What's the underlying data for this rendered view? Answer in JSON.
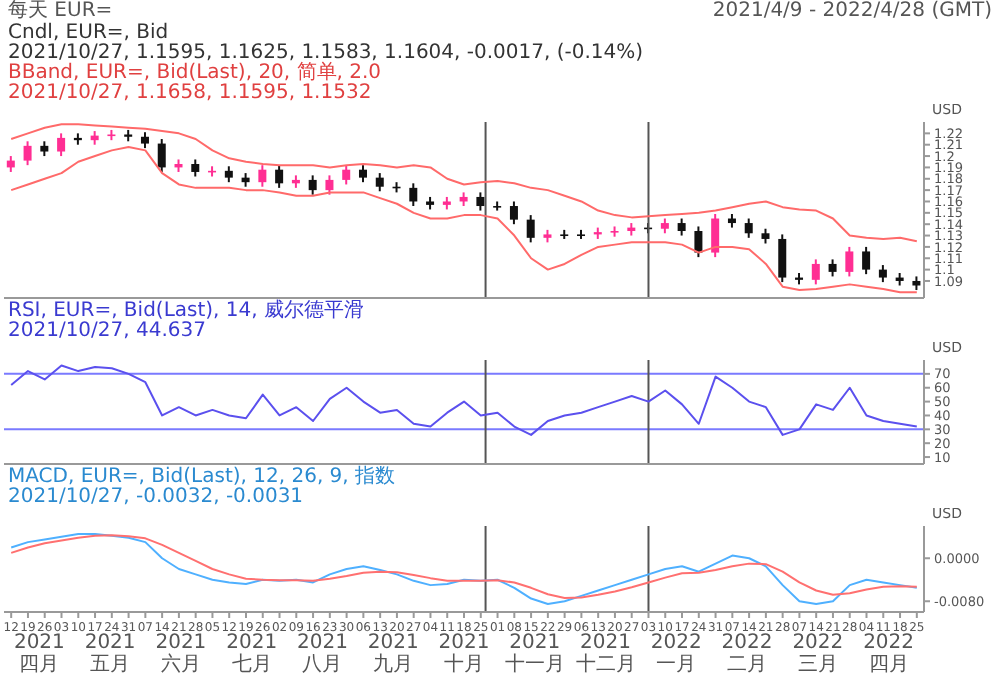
{
  "chart_data": [
    {
      "type": "candlestick",
      "title": "每天 EUR=",
      "subtitle": "2021/4/9 - 2022/4/28 (GMT)",
      "ylabel": "USD",
      "annotations": [
        "Cndl, EUR=, Bid",
        "2021/10/27, 1.1595, 1.1625, 1.1583, 1.1604, -0.0017, (-0.14%)",
        "BBand, EUR=, Bid(Last), 20, 简单, 2.0",
        "2021/10/27, 1.1658, 1.1595, 1.1532"
      ],
      "x": [
        "2021-04-12",
        "2021-04-19",
        "2021-04-26",
        "2021-05-03",
        "2021-05-10",
        "2021-05-17",
        "2021-05-24",
        "2021-05-31",
        "2021-06-07",
        "2021-06-14",
        "2021-06-21",
        "2021-06-28",
        "2021-07-05",
        "2021-07-12",
        "2021-07-19",
        "2021-07-26",
        "2021-08-02",
        "2021-08-09",
        "2021-08-16",
        "2021-08-23",
        "2021-08-30",
        "2021-09-06",
        "2021-09-13",
        "2021-09-20",
        "2021-09-27",
        "2021-10-04",
        "2021-10-11",
        "2021-10-18",
        "2021-10-25",
        "2021-11-01",
        "2021-11-08",
        "2021-11-15",
        "2021-11-22",
        "2021-11-29",
        "2021-12-06",
        "2021-12-13",
        "2021-12-20",
        "2021-12-27",
        "2022-01-03",
        "2022-01-10",
        "2022-01-17",
        "2022-01-24",
        "2022-01-31",
        "2022-02-07",
        "2022-02-14",
        "2022-02-21",
        "2022-02-28",
        "2022-03-07",
        "2022-03-14",
        "2022-03-21",
        "2022-03-28",
        "2022-04-04",
        "2022-04-11",
        "2022-04-18",
        "2022-04-25"
      ],
      "xlim": [
        "2021-04-09",
        "2022-04-28"
      ],
      "ylim": [
        1.075,
        1.23
      ],
      "yticks": [
        1.09,
        1.1,
        1.11,
        1.12,
        1.13,
        1.14,
        1.15,
        1.16,
        1.17,
        1.18,
        1.19,
        1.2,
        1.21,
        1.22
      ],
      "tick_labels": "y",
      "ref_lines": [
        {
          "axis": "x",
          "value": "2021-10-27",
          "label": null,
          "color": "#555555"
        },
        {
          "axis": "x",
          "value": "2022-01-03",
          "label": null,
          "color": "#555555"
        }
      ],
      "series": [
        {
          "ohlc": [
            [
              1.19,
              1.2,
              1.186,
              1.196
            ],
            [
              1.196,
              1.213,
              1.192,
              1.209
            ],
            [
              1.209,
              1.213,
              1.2,
              1.204
            ],
            [
              1.204,
              1.22,
              1.2,
              1.216
            ],
            [
              1.216,
              1.22,
              1.21,
              1.214
            ],
            [
              1.214,
              1.222,
              1.21,
              1.218
            ],
            [
              1.218,
              1.223,
              1.214,
              1.219
            ],
            [
              1.219,
              1.223,
              1.213,
              1.217
            ],
            [
              1.217,
              1.221,
              1.207,
              1.211
            ],
            [
              1.211,
              1.215,
              1.186,
              1.19
            ],
            [
              1.19,
              1.197,
              1.186,
              1.193
            ],
            [
              1.193,
              1.197,
              1.182,
              1.186
            ],
            [
              1.186,
              1.191,
              1.182,
              1.187
            ],
            [
              1.187,
              1.191,
              1.177,
              1.181
            ],
            [
              1.181,
              1.185,
              1.173,
              1.177
            ],
            [
              1.177,
              1.192,
              1.173,
              1.188
            ],
            [
              1.188,
              1.192,
              1.172,
              1.176
            ],
            [
              1.176,
              1.183,
              1.172,
              1.179
            ],
            [
              1.179,
              1.183,
              1.166,
              1.17
            ],
            [
              1.17,
              1.183,
              1.166,
              1.179
            ],
            [
              1.179,
              1.192,
              1.175,
              1.188
            ],
            [
              1.188,
              1.192,
              1.177,
              1.181
            ],
            [
              1.181,
              1.185,
              1.169,
              1.173
            ],
            [
              1.173,
              1.177,
              1.168,
              1.172
            ],
            [
              1.172,
              1.176,
              1.156,
              1.16
            ],
            [
              1.16,
              1.164,
              1.153,
              1.157
            ],
            [
              1.157,
              1.164,
              1.153,
              1.16
            ],
            [
              1.16,
              1.168,
              1.156,
              1.164
            ],
            [
              1.164,
              1.168,
              1.152,
              1.156
            ],
            [
              1.156,
              1.16,
              1.152,
              1.156
            ],
            [
              1.156,
              1.16,
              1.14,
              1.144
            ],
            [
              1.144,
              1.148,
              1.124,
              1.128
            ],
            [
              1.128,
              1.135,
              1.124,
              1.131
            ],
            [
              1.131,
              1.135,
              1.127,
              1.131
            ],
            [
              1.131,
              1.135,
              1.127,
              1.131
            ],
            [
              1.131,
              1.137,
              1.127,
              1.133
            ],
            [
              1.133,
              1.138,
              1.129,
              1.134
            ],
            [
              1.134,
              1.141,
              1.13,
              1.137
            ],
            [
              1.137,
              1.141,
              1.132,
              1.136
            ],
            [
              1.136,
              1.145,
              1.132,
              1.141
            ],
            [
              1.141,
              1.145,
              1.13,
              1.134
            ],
            [
              1.134,
              1.138,
              1.111,
              1.115
            ],
            [
              1.115,
              1.149,
              1.111,
              1.145
            ],
            [
              1.145,
              1.149,
              1.137,
              1.141
            ],
            [
              1.141,
              1.145,
              1.128,
              1.132
            ],
            [
              1.132,
              1.136,
              1.123,
              1.127
            ],
            [
              1.127,
              1.131,
              1.089,
              1.093
            ],
            [
              1.093,
              1.097,
              1.087,
              1.091
            ],
            [
              1.091,
              1.109,
              1.087,
              1.105
            ],
            [
              1.105,
              1.109,
              1.094,
              1.098
            ],
            [
              1.098,
              1.12,
              1.094,
              1.116
            ],
            [
              1.116,
              1.12,
              1.096,
              1.1
            ],
            [
              1.1,
              1.104,
              1.089,
              1.093
            ],
            [
              1.093,
              1.097,
              1.086,
              1.09
            ],
            [
              1.09,
              1.094,
              1.082,
              1.086
            ]
          ],
          "colors": [
            "#ff2e93",
            "#ff2e93",
            "#111111",
            "#ff2e93",
            "#111111",
            "#ff2e93",
            "#ff2e93",
            "#111111",
            "#111111",
            "#111111",
            "#ff2e93",
            "#111111",
            "#ff2e93",
            "#111111",
            "#111111",
            "#ff2e93",
            "#111111",
            "#ff2e93",
            "#111111",
            "#ff2e93",
            "#ff2e93",
            "#111111",
            "#111111",
            "#111111",
            "#111111",
            "#111111",
            "#ff2e93",
            "#ff2e93",
            "#111111",
            "#111111",
            "#111111",
            "#111111",
            "#ff2e93",
            "#111111",
            "#111111",
            "#ff2e93",
            "#ff2e93",
            "#ff2e93",
            "#111111",
            "#ff2e93",
            "#111111",
            "#111111",
            "#ff2e93",
            "#111111",
            "#111111",
            "#111111",
            "#111111",
            "#111111",
            "#ff2e93",
            "#111111",
            "#ff2e93",
            "#111111",
            "#111111",
            "#111111",
            "#111111"
          ]
        },
        {
          "type": "line",
          "color": "#ff6a6a",
          "values": [
            1.215,
            1.22,
            1.225,
            1.228,
            1.228,
            1.227,
            1.226,
            1.225,
            1.224,
            1.222,
            1.22,
            1.215,
            1.205,
            1.198,
            1.195,
            1.193,
            1.192,
            1.192,
            1.192,
            1.19,
            1.192,
            1.193,
            1.192,
            1.19,
            1.192,
            1.19,
            1.18,
            1.175,
            1.177,
            1.178,
            1.176,
            1.172,
            1.17,
            1.165,
            1.16,
            1.152,
            1.148,
            1.146,
            1.147,
            1.148,
            1.149,
            1.15,
            1.152,
            1.155,
            1.158,
            1.16,
            1.155,
            1.153,
            1.152,
            1.145,
            1.13,
            1.128,
            1.127,
            1.128,
            1.125
          ]
        },
        {
          "type": "line",
          "color": "#ff6a6a",
          "values": [
            1.17,
            1.175,
            1.18,
            1.185,
            1.195,
            1.2,
            1.205,
            1.208,
            1.205,
            1.185,
            1.175,
            1.172,
            1.172,
            1.172,
            1.17,
            1.17,
            1.168,
            1.165,
            1.165,
            1.168,
            1.168,
            1.168,
            1.163,
            1.158,
            1.15,
            1.145,
            1.145,
            1.148,
            1.148,
            1.145,
            1.13,
            1.11,
            1.1,
            1.105,
            1.113,
            1.12,
            1.122,
            1.124,
            1.124,
            1.124,
            1.122,
            1.115,
            1.12,
            1.12,
            1.118,
            1.105,
            1.085,
            1.082,
            1.083,
            1.085,
            1.087,
            1.085,
            1.083,
            1.08,
            1.08
          ]
        }
      ]
    },
    {
      "type": "line",
      "ylabel": "USD",
      "annotations": [
        "RSI, EUR=, Bid(Last), 14, 威尔德平滑",
        "2021/10/27, 44.637"
      ],
      "x": [
        "2021-04-12",
        "2021-04-19",
        "2021-04-26",
        "2021-05-03",
        "2021-05-10",
        "2021-05-17",
        "2021-05-24",
        "2021-05-31",
        "2021-06-07",
        "2021-06-14",
        "2021-06-21",
        "2021-06-28",
        "2021-07-05",
        "2021-07-12",
        "2021-07-19",
        "2021-07-26",
        "2021-08-02",
        "2021-08-09",
        "2021-08-16",
        "2021-08-23",
        "2021-08-30",
        "2021-09-06",
        "2021-09-13",
        "2021-09-20",
        "2021-09-27",
        "2021-10-04",
        "2021-10-11",
        "2021-10-18",
        "2021-10-25",
        "2021-11-01",
        "2021-11-08",
        "2021-11-15",
        "2021-11-22",
        "2021-11-29",
        "2021-12-06",
        "2021-12-13",
        "2021-12-20",
        "2021-12-27",
        "2022-01-03",
        "2022-01-10",
        "2022-01-17",
        "2022-01-24",
        "2022-01-31",
        "2022-02-07",
        "2022-02-14",
        "2022-02-21",
        "2022-02-28",
        "2022-03-07",
        "2022-03-14",
        "2022-03-21",
        "2022-03-28",
        "2022-04-04",
        "2022-04-11",
        "2022-04-18",
        "2022-04-25"
      ],
      "xlim": [
        "2021-04-09",
        "2022-04-28"
      ],
      "ylim": [
        5,
        80
      ],
      "yticks": [
        10,
        20,
        30,
        40,
        50,
        60,
        70
      ],
      "tick_labels": "y",
      "ref_lines": [
        {
          "axis": "y",
          "value": 70,
          "label": null,
          "color": "#7a7aff"
        },
        {
          "axis": "y",
          "value": 30,
          "label": null,
          "color": "#7a7aff"
        },
        {
          "axis": "x",
          "value": "2021-10-27",
          "label": null,
          "color": "#555555"
        },
        {
          "axis": "x",
          "value": "2022-01-03",
          "label": null,
          "color": "#555555"
        }
      ],
      "series": [
        {
          "color": "#5b50ee",
          "values": [
            62,
            72,
            66,
            76,
            72,
            75,
            74,
            70,
            64,
            40,
            46,
            40,
            44,
            40,
            38,
            55,
            40,
            46,
            36,
            52,
            60,
            50,
            42,
            44,
            34,
            32,
            42,
            50,
            40,
            42,
            32,
            26,
            36,
            40,
            42,
            46,
            50,
            54,
            50,
            58,
            48,
            34,
            68,
            60,
            50,
            46,
            26,
            30,
            48,
            44,
            60,
            40,
            36,
            34,
            32
          ]
        }
      ]
    },
    {
      "type": "line",
      "ylabel": "USD",
      "annotations": [
        "MACD, EUR=, Bid(Last), 12, 26, 9, 指数",
        "2021/10/27, -0.0032, -0.0031",
        "2021 四月",
        "2021 五月",
        "2021 六月",
        "2021 七月",
        "2021 八月",
        "2021 九月",
        "2021 十月",
        "2021 十一月",
        "2021 十二月",
        "2022 一月",
        "2022 二月",
        "2022 三月",
        "2022 四月"
      ],
      "x": [
        "2021-04-12",
        "2021-04-19",
        "2021-04-26",
        "2021-05-03",
        "2021-05-10",
        "2021-05-17",
        "2021-05-24",
        "2021-05-31",
        "2021-06-07",
        "2021-06-14",
        "2021-06-21",
        "2021-06-28",
        "2021-07-05",
        "2021-07-12",
        "2021-07-19",
        "2021-07-26",
        "2021-08-02",
        "2021-08-09",
        "2021-08-16",
        "2021-08-23",
        "2021-08-30",
        "2021-09-06",
        "2021-09-13",
        "2021-09-20",
        "2021-09-27",
        "2021-10-04",
        "2021-10-11",
        "2021-10-18",
        "2021-10-25",
        "2021-11-01",
        "2021-11-08",
        "2021-11-15",
        "2021-11-22",
        "2021-11-29",
        "2021-12-06",
        "2021-12-13",
        "2021-12-20",
        "2021-12-27",
        "2022-01-03",
        "2022-01-10",
        "2022-01-17",
        "2022-01-24",
        "2022-01-31",
        "2022-02-07",
        "2022-02-14",
        "2022-02-21",
        "2022-02-28",
        "2022-03-07",
        "2022-03-14",
        "2022-03-21",
        "2022-03-28",
        "2022-04-04",
        "2022-04-11",
        "2022-04-18",
        "2022-04-25"
      ],
      "xlim": [
        "2021-04-09",
        "2022-04-28"
      ],
      "xticks": [
        {
          "value": "2021-04-12",
          "label": "12"
        },
        {
          "value": "2021-04-19",
          "label": "19"
        },
        {
          "value": "2021-04-26",
          "label": "26"
        },
        {
          "value": "2021-05-03",
          "label": "03"
        },
        {
          "value": "2021-05-10",
          "label": "10"
        },
        {
          "value": "2021-05-17",
          "label": "17"
        },
        {
          "value": "2021-05-24",
          "label": "24"
        },
        {
          "value": "2021-05-31",
          "label": "31"
        },
        {
          "value": "2021-06-07",
          "label": "07"
        },
        {
          "value": "2021-06-14",
          "label": "14"
        },
        {
          "value": "2021-06-21",
          "label": "21"
        },
        {
          "value": "2021-06-28",
          "label": "28"
        },
        {
          "value": "2021-07-05",
          "label": "05"
        },
        {
          "value": "2021-07-12",
          "label": "12"
        },
        {
          "value": "2021-07-19",
          "label": "19"
        },
        {
          "value": "2021-07-26",
          "label": "26"
        },
        {
          "value": "2021-08-02",
          "label": "02"
        },
        {
          "value": "2021-08-09",
          "label": "09"
        },
        {
          "value": "2021-08-16",
          "label": "16"
        },
        {
          "value": "2021-08-23",
          "label": "23"
        },
        {
          "value": "2021-08-30",
          "label": "30"
        },
        {
          "value": "2021-09-06",
          "label": "06"
        },
        {
          "value": "2021-09-13",
          "label": "13"
        },
        {
          "value": "2021-09-20",
          "label": "20"
        },
        {
          "value": "2021-09-27",
          "label": "27"
        },
        {
          "value": "2021-10-04",
          "label": "04"
        },
        {
          "value": "2021-10-11",
          "label": "11"
        },
        {
          "value": "2021-10-18",
          "label": "18"
        },
        {
          "value": "2021-10-25",
          "label": "25"
        },
        {
          "value": "2021-11-01",
          "label": "01"
        },
        {
          "value": "2021-11-08",
          "label": "08"
        },
        {
          "value": "2021-11-15",
          "label": "15"
        },
        {
          "value": "2021-11-22",
          "label": "22"
        },
        {
          "value": "2021-11-29",
          "label": "29"
        },
        {
          "value": "2021-12-06",
          "label": "06"
        },
        {
          "value": "2021-12-13",
          "label": "13"
        },
        {
          "value": "2021-12-20",
          "label": "20"
        },
        {
          "value": "2021-12-27",
          "label": "27"
        },
        {
          "value": "2022-01-03",
          "label": "03"
        },
        {
          "value": "2022-01-10",
          "label": "10"
        },
        {
          "value": "2022-01-17",
          "label": "17"
        },
        {
          "value": "2022-01-24",
          "label": "24"
        },
        {
          "value": "2022-01-31",
          "label": "31"
        },
        {
          "value": "2022-02-07",
          "label": "07"
        },
        {
          "value": "2022-02-14",
          "label": "14"
        },
        {
          "value": "2022-02-21",
          "label": "21"
        },
        {
          "value": "2022-02-28",
          "label": "28"
        },
        {
          "value": "2022-03-07",
          "label": "07"
        },
        {
          "value": "2022-03-14",
          "label": "14"
        },
        {
          "value": "2022-03-21",
          "label": "21"
        },
        {
          "value": "2022-03-28",
          "label": "28"
        },
        {
          "value": "2022-04-04",
          "label": "04"
        },
        {
          "value": "2022-04-11",
          "label": "11"
        },
        {
          "value": "2022-04-18",
          "label": "18"
        },
        {
          "value": "2022-04-25",
          "label": "25"
        }
      ],
      "ylim": [
        -0.01,
        0.006
      ],
      "yticks": [
        {
          "value": 0,
          "label": "0.0000"
        },
        {
          "value": -0.008,
          "label": "-0.0080"
        }
      ],
      "ref_lines": [
        {
          "axis": "x",
          "value": "2021-10-27",
          "label": null,
          "color": "#555555"
        },
        {
          "axis": "x",
          "value": "2022-01-03",
          "label": null,
          "color": "#555555"
        }
      ],
      "series": [
        {
          "color": "#4fb0ff",
          "values": [
            0.002,
            0.003,
            0.0035,
            0.004,
            0.0045,
            0.0045,
            0.0042,
            0.0038,
            0.003,
            0.0,
            -0.002,
            -0.003,
            -0.004,
            -0.0045,
            -0.0048,
            -0.004,
            -0.0042,
            -0.004,
            -0.0045,
            -0.003,
            -0.002,
            -0.0015,
            -0.0022,
            -0.003,
            -0.0042,
            -0.005,
            -0.0048,
            -0.004,
            -0.0042,
            -0.004,
            -0.0055,
            -0.0075,
            -0.0085,
            -0.008,
            -0.007,
            -0.006,
            -0.005,
            -0.004,
            -0.003,
            -0.002,
            -0.0015,
            -0.0025,
            -0.001,
            0.0005,
            0.0,
            -0.0015,
            -0.005,
            -0.008,
            -0.0085,
            -0.008,
            -0.005,
            -0.004,
            -0.0045,
            -0.005,
            -0.0055
          ]
        },
        {
          "color": "#ff7070",
          "values": [
            0.001,
            0.002,
            0.0028,
            0.0033,
            0.0038,
            0.0042,
            0.0043,
            0.0041,
            0.0037,
            0.0025,
            0.001,
            -0.0005,
            -0.002,
            -0.003,
            -0.0038,
            -0.004,
            -0.0041,
            -0.0041,
            -0.0042,
            -0.0038,
            -0.0033,
            -0.0027,
            -0.0025,
            -0.0026,
            -0.0031,
            -0.0037,
            -0.0042,
            -0.0042,
            -0.0042,
            -0.0041,
            -0.0045,
            -0.0055,
            -0.0067,
            -0.0074,
            -0.0073,
            -0.0068,
            -0.0062,
            -0.0054,
            -0.0045,
            -0.0036,
            -0.0028,
            -0.0027,
            -0.0022,
            -0.0015,
            -0.001,
            -0.0011,
            -0.0025,
            -0.0045,
            -0.006,
            -0.0068,
            -0.0065,
            -0.0058,
            -0.0053,
            -0.0052,
            -0.0053
          ]
        }
      ]
    }
  ]
}
